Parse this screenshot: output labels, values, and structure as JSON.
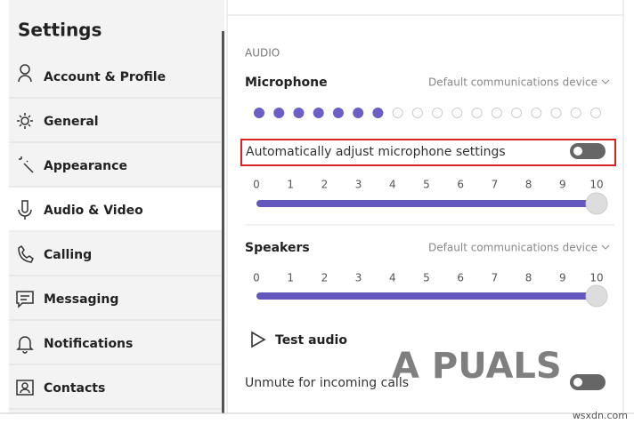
{
  "sidebar": {
    "title": "Settings",
    "items": [
      "Account & Profile",
      "General",
      "Appearance",
      "Audio & Video",
      "Calling",
      "Messaging",
      "Notifications",
      "Contacts"
    ],
    "active": 3
  },
  "audio": {
    "section": "AUDIO",
    "microphone": {
      "label": "Microphone",
      "device": "Default communications device",
      "level_dots": 18,
      "level_filled": 7,
      "auto_adjust": {
        "label": "Automatically adjust microphone settings",
        "on": false
      },
      "scale": [
        0,
        1,
        2,
        3,
        4,
        5,
        6,
        7,
        8,
        9,
        10
      ],
      "volume": 10
    },
    "speakers": {
      "label": "Speakers",
      "device": "Default communications device",
      "scale": [
        0,
        1,
        2,
        3,
        4,
        5,
        6,
        7,
        8,
        9,
        10
      ],
      "volume": 10
    },
    "test_audio": "Test audio",
    "unmute": {
      "label": "Unmute for incoming calls",
      "on": false
    }
  },
  "watermarks": [
    "A PUALS",
    "wsxdn.com"
  ]
}
